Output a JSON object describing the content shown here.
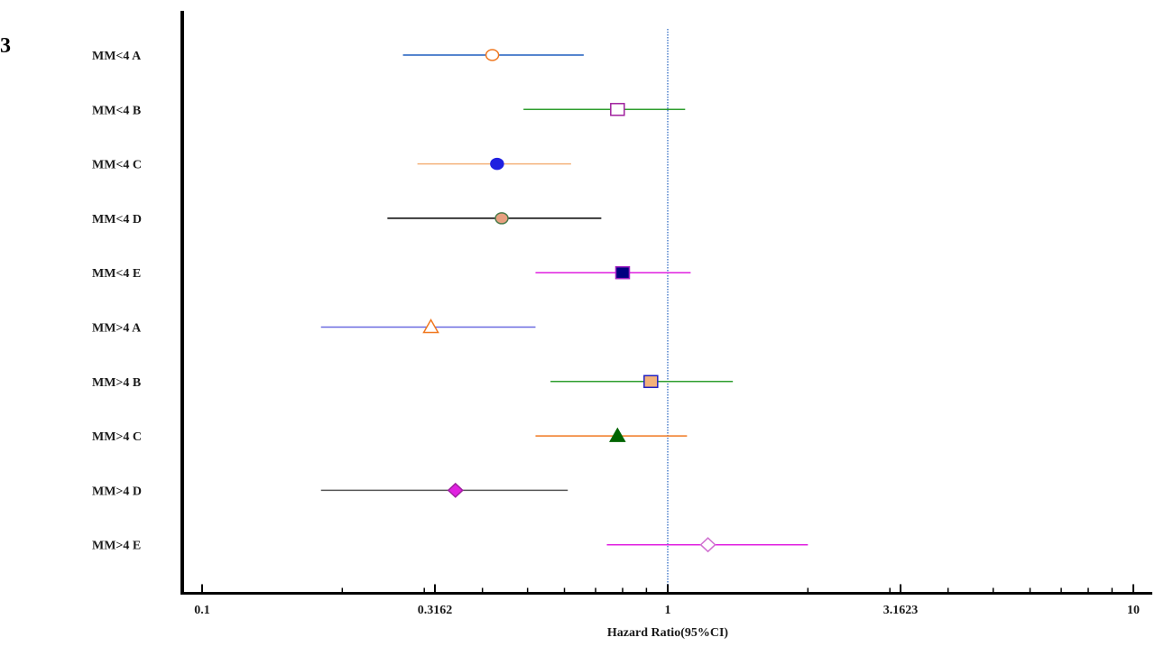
{
  "panel_label": "3",
  "chart_data": {
    "type": "forest",
    "xlabel": "Hazard Ratio(95%CI)",
    "x_scale": "log",
    "xlim": [
      0.1,
      10
    ],
    "x_ticks": [
      {
        "value": 0.1,
        "label": "0.1"
      },
      {
        "value": 0.3162,
        "label": "0.3162"
      },
      {
        "value": 1,
        "label": "1"
      },
      {
        "value": 3.1623,
        "label": "3.1623"
      },
      {
        "value": 10,
        "label": "10"
      }
    ],
    "reference_line": 1,
    "rows": [
      {
        "label": "MM<4 A",
        "hr": 0.42,
        "lower": 0.27,
        "upper": 0.66,
        "marker": "circle",
        "fill": "#ffffff",
        "stroke": "#f07820",
        "line_color": "#1f5fbf"
      },
      {
        "label": "MM<4 B",
        "hr": 0.78,
        "lower": 0.49,
        "upper": 1.09,
        "marker": "square",
        "fill": "#ffffff",
        "stroke": "#a0209e",
        "line_color": "#2e9e2e"
      },
      {
        "label": "MM<4 C",
        "hr": 0.43,
        "lower": 0.29,
        "upper": 0.62,
        "marker": "circle",
        "fill": "#2020e0",
        "stroke": "#2020e0",
        "line_color": "#f4b27a"
      },
      {
        "label": "MM<4 D",
        "hr": 0.44,
        "lower": 0.25,
        "upper": 0.72,
        "marker": "circle",
        "fill": "#e8a080",
        "stroke": "#4a7a4a",
        "line_color": "#000000"
      },
      {
        "label": "MM<4 E",
        "hr": 0.8,
        "lower": 0.52,
        "upper": 1.12,
        "marker": "square",
        "fill": "#000080",
        "stroke": "#a020c0",
        "line_color": "#e020e0"
      },
      {
        "label": "MM>4 A",
        "hr": 0.31,
        "lower": 0.18,
        "upper": 0.52,
        "marker": "triangle",
        "fill": "#ffffff",
        "stroke": "#f07820",
        "line_color": "#6a6ae0"
      },
      {
        "label": "MM>4 B",
        "hr": 0.92,
        "lower": 0.56,
        "upper": 1.38,
        "marker": "square",
        "fill": "#f4b27a",
        "stroke": "#2020c0",
        "line_color": "#2e9e2e"
      },
      {
        "label": "MM>4 C",
        "hr": 0.78,
        "lower": 0.52,
        "upper": 1.1,
        "marker": "triangle",
        "fill": "#006400",
        "stroke": "#006400",
        "line_color": "#f07820"
      },
      {
        "label": "MM>4 D",
        "hr": 0.35,
        "lower": 0.18,
        "upper": 0.61,
        "marker": "diamond",
        "fill": "#e020e0",
        "stroke": "#a020a0",
        "line_color": "#555555"
      },
      {
        "label": "MM>4 E",
        "hr": 1.22,
        "lower": 0.74,
        "upper": 2.0,
        "marker": "diamond",
        "fill": "#ffffff",
        "stroke": "#d070d0",
        "line_color": "#e020e0"
      }
    ]
  }
}
